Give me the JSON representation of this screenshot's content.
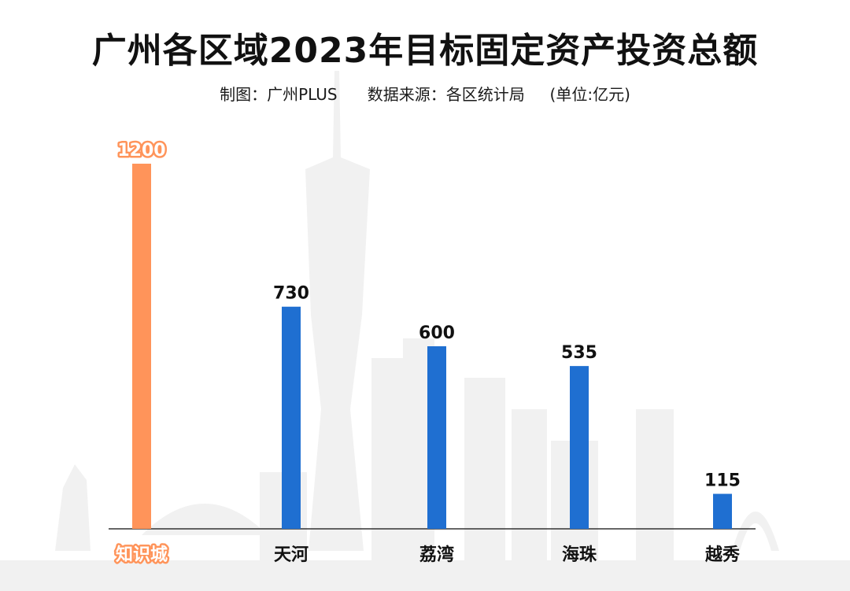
{
  "title": "广州各区域2023年目标固定资产投资总额",
  "subtitle": "制图：广州PLUS      数据来源：各区统计局     (单位:亿元)",
  "colors": {
    "highlight": "#FF945A",
    "bar": "#1F6FD1",
    "axis": "#333333",
    "label": "#111111",
    "background_art": "#EFEFEF"
  },
  "chart_data": {
    "type": "bar",
    "categories": [
      "知识城",
      "天河",
      "荔湾",
      "海珠",
      "越秀"
    ],
    "values": [
      1200,
      730,
      600,
      535,
      115
    ],
    "value_labels": [
      "1200",
      "730",
      "600",
      "535",
      "115"
    ],
    "highlight_index": 0,
    "title": "广州各区域2023年目标固定资产投资总额",
    "xlabel": "",
    "ylabel": "",
    "unit": "亿元",
    "ylim": [
      0,
      1200
    ],
    "grid": false,
    "legend": "none"
  }
}
